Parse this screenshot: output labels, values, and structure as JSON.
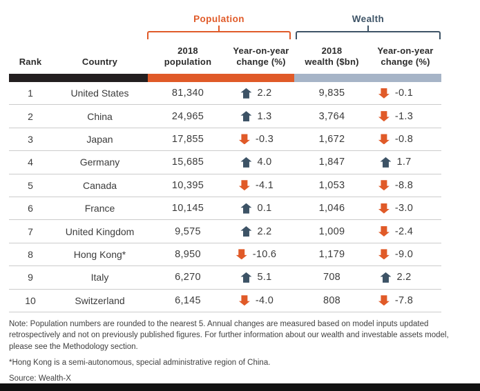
{
  "header": {
    "groups": {
      "population": "Population",
      "wealth": "Wealth"
    },
    "columns": {
      "rank": "Rank",
      "country": "Country",
      "population": "2018\npopulation",
      "population_change": "Year-on-year\nchange (%)",
      "wealth": "2018\nwealth ($bn)",
      "wealth_change": "Year-on-year\nchange (%)"
    }
  },
  "table": {
    "rows": [
      {
        "rank": "1",
        "country": "United States",
        "population": "81,340",
        "pop_dir": "up",
        "pop_change": "2.2",
        "wealth": "9,835",
        "wealth_dir": "down",
        "wealth_change": "-0.1"
      },
      {
        "rank": "2",
        "country": "China",
        "population": "24,965",
        "pop_dir": "up",
        "pop_change": "1.3",
        "wealth": "3,764",
        "wealth_dir": "down",
        "wealth_change": "-1.3"
      },
      {
        "rank": "3",
        "country": "Japan",
        "population": "17,855",
        "pop_dir": "down",
        "pop_change": "-0.3",
        "wealth": "1,672",
        "wealth_dir": "down",
        "wealth_change": "-0.8"
      },
      {
        "rank": "4",
        "country": "Germany",
        "population": "15,685",
        "pop_dir": "up",
        "pop_change": "4.0",
        "wealth": "1,847",
        "wealth_dir": "up",
        "wealth_change": "1.7"
      },
      {
        "rank": "5",
        "country": "Canada",
        "population": "10,395",
        "pop_dir": "down",
        "pop_change": "-4.1",
        "wealth": "1,053",
        "wealth_dir": "down",
        "wealth_change": "-8.8"
      },
      {
        "rank": "6",
        "country": "France",
        "population": "10,145",
        "pop_dir": "up",
        "pop_change": "0.1",
        "wealth": "1,046",
        "wealth_dir": "down",
        "wealth_change": "-3.0"
      },
      {
        "rank": "7",
        "country": "United Kingdom",
        "population": "9,575",
        "pop_dir": "up",
        "pop_change": "2.2",
        "wealth": "1,009",
        "wealth_dir": "down",
        "wealth_change": "-2.4"
      },
      {
        "rank": "8",
        "country": "Hong Kong*",
        "population": "8,950",
        "pop_dir": "down",
        "pop_change": "-10.6",
        "wealth": "1,179",
        "wealth_dir": "down",
        "wealth_change": "-9.0"
      },
      {
        "rank": "9",
        "country": "Italy",
        "population": "6,270",
        "pop_dir": "up",
        "pop_change": "5.1",
        "wealth": "708",
        "wealth_dir": "up",
        "wealth_change": "2.2"
      },
      {
        "rank": "10",
        "country": "Switzerland",
        "population": "6,145",
        "pop_dir": "down",
        "pop_change": "-4.0",
        "wealth": "808",
        "wealth_dir": "down",
        "wealth_change": "-7.8"
      }
    ]
  },
  "notes": {
    "note": "Note: Population numbers are rounded to the nearest 5. Annual changes are measured based on model inputs updated retrospectively and not on previously published figures. For further information about our wealth and investable assets model, please see the Methodology section.",
    "hong_kong_note": "*Hong Kong is a semi-autonomous, special administrative region of China.",
    "source": "Source: Wealth-X"
  },
  "colors": {
    "accent_orange": "#E05A28",
    "accent_slate": "#3D5366",
    "bar_black": "#231F20",
    "bar_bluegray": "#A6B4C7"
  },
  "chart_data": {
    "type": "table",
    "title": "",
    "column_groups": [
      "Population",
      "Wealth"
    ],
    "columns": [
      "Rank",
      "Country",
      "2018 population",
      "Population year-on-year change (%)",
      "2018 wealth ($bn)",
      "Wealth year-on-year change (%)"
    ],
    "rows": [
      [
        1,
        "United States",
        81340,
        2.2,
        9835,
        -0.1
      ],
      [
        2,
        "China",
        24965,
        1.3,
        3764,
        -1.3
      ],
      [
        3,
        "Japan",
        17855,
        -0.3,
        1672,
        -0.8
      ],
      [
        4,
        "Germany",
        15685,
        4.0,
        1847,
        1.7
      ],
      [
        5,
        "Canada",
        10395,
        -4.1,
        1053,
        -8.8
      ],
      [
        6,
        "France",
        10145,
        0.1,
        1046,
        -3.0
      ],
      [
        7,
        "United Kingdom",
        9575,
        2.2,
        1009,
        -2.4
      ],
      [
        8,
        "Hong Kong",
        8950,
        -10.6,
        1179,
        -9.0
      ],
      [
        9,
        "Italy",
        6270,
        5.1,
        708,
        2.2
      ],
      [
        10,
        "Switzerland",
        6145,
        -4.0,
        808,
        -7.8
      ]
    ],
    "notes": "Population numbers rounded to nearest 5; Hong Kong is a semi-autonomous, special administrative region of China",
    "source": "Wealth-X"
  }
}
